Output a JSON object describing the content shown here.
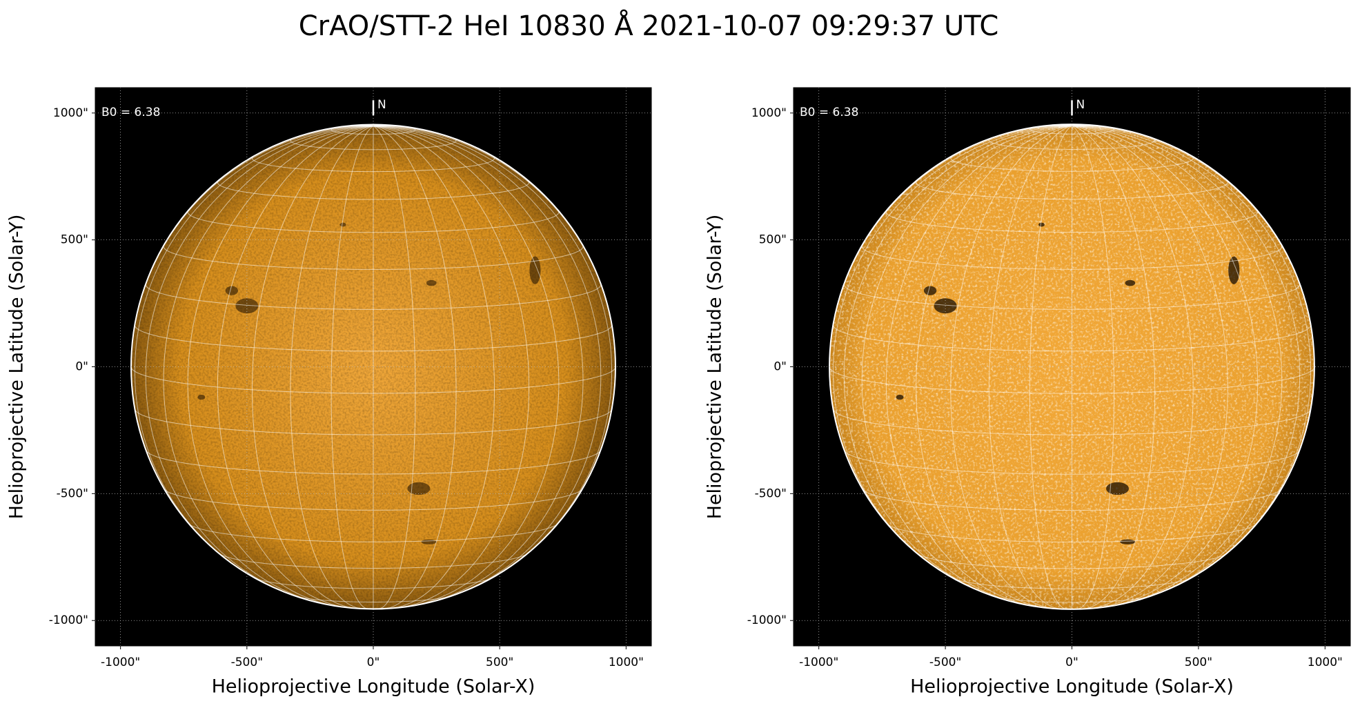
{
  "title": "CrAO/STT-2 HeI 10830 Å 2021-10-07 09:29:37 UTC",
  "chart_data": [
    {
      "type": "image",
      "xlabel": "Helioprojective Longitude (Solar-X)",
      "ylabel": "Helioprojective Latitude (Solar-Y)",
      "annotation": "B0 = 6.38",
      "north_label": "N",
      "limb_radius": 958,
      "xlim": [
        -1100,
        1100
      ],
      "ylim": [
        -1100,
        1100
      ],
      "xticks": [
        {
          "value": -1000,
          "label": "-1000\""
        },
        {
          "value": -500,
          "label": "-500\""
        },
        {
          "value": 0,
          "label": "0\""
        },
        {
          "value": 500,
          "label": "500\""
        },
        {
          "value": 1000,
          "label": "1000\""
        }
      ],
      "yticks": [
        {
          "value": -1000,
          "label": "-1000\""
        },
        {
          "value": -500,
          "label": "-500\""
        },
        {
          "value": 0,
          "label": "0\""
        },
        {
          "value": 500,
          "label": "500\""
        },
        {
          "value": 1000,
          "label": "1000\""
        }
      ],
      "grid": true
    },
    {
      "type": "image",
      "xlabel": "Helioprojective Longitude (Solar-X)",
      "ylabel": "Helioprojective Latitude (Solar-Y)",
      "annotation": "B0 = 6.38",
      "north_label": "N",
      "limb_radius": 958,
      "xlim": [
        -1100,
        1100
      ],
      "ylim": [
        -1100,
        1100
      ],
      "xticks": [
        {
          "value": -1000,
          "label": "-1000\""
        },
        {
          "value": -500,
          "label": "-500\""
        },
        {
          "value": 0,
          "label": "0\""
        },
        {
          "value": 500,
          "label": "500\""
        },
        {
          "value": 1000,
          "label": "1000\""
        }
      ],
      "yticks": [
        {
          "value": -1000,
          "label": "-1000\""
        },
        {
          "value": -500,
          "label": "-500\""
        },
        {
          "value": 0,
          "label": "0\""
        },
        {
          "value": 500,
          "label": "500\""
        },
        {
          "value": 1000,
          "label": "1000\""
        }
      ],
      "grid": true
    }
  ]
}
